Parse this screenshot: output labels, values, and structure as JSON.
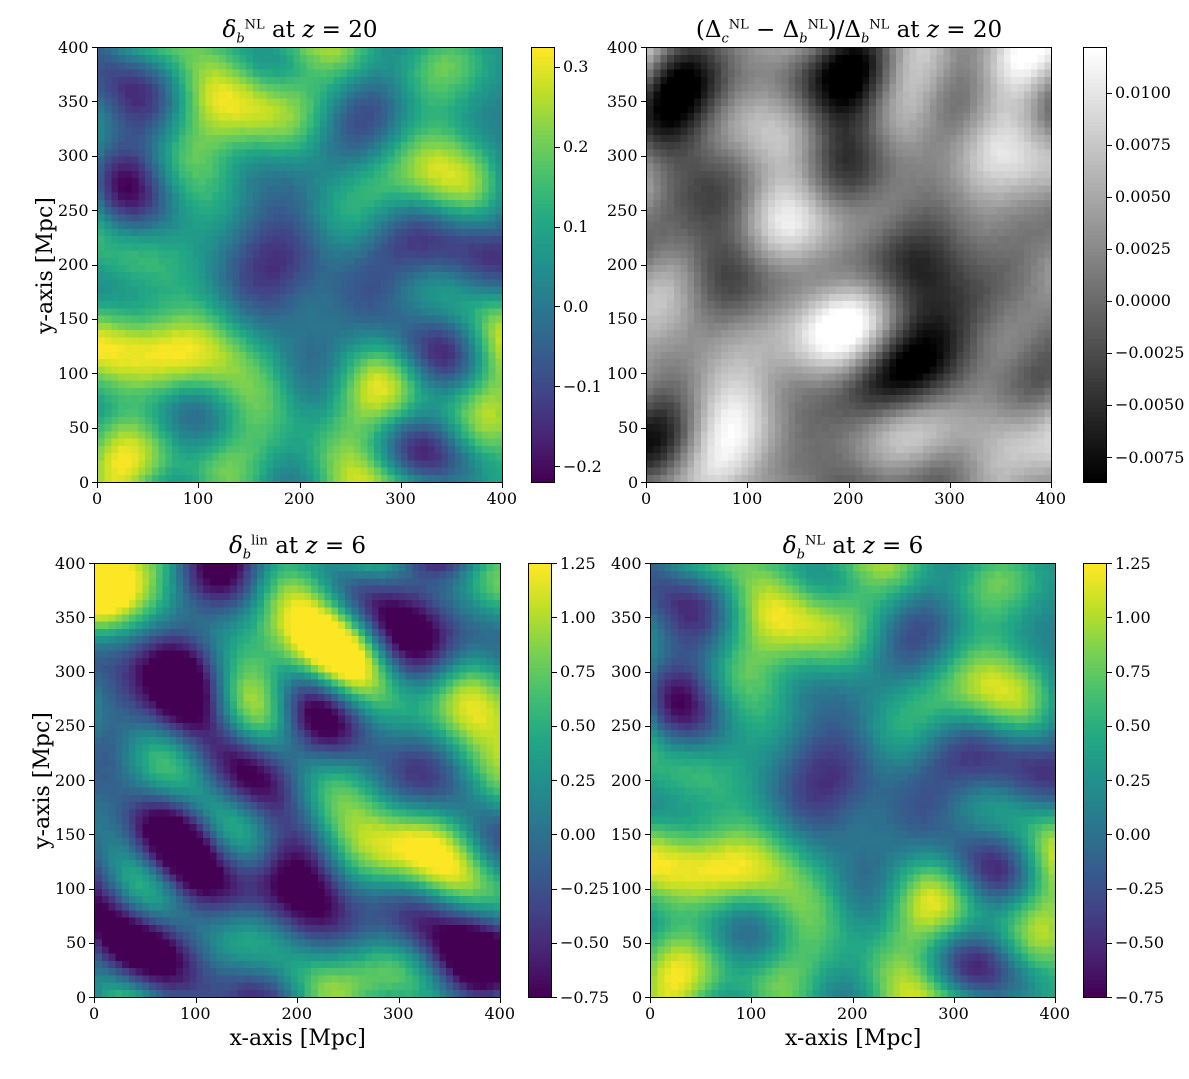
{
  "figure": {
    "xlabel": "x-axis [Mpc]",
    "ylabel": "y-axis [Mpc]"
  },
  "chart_data": [
    {
      "type": "heatmap",
      "id": "tl",
      "title_parts": [
        {
          "t": "δ",
          "it": true
        },
        {
          "t": "b",
          "sub": true,
          "it": true
        },
        {
          "t": "NL",
          "sup": true
        },
        {
          "t": " at "
        },
        {
          "t": "z",
          "it": true
        },
        {
          "t": " = 20"
        }
      ],
      "title_text": "δb^NL at z = 20",
      "colormap": "viridis",
      "xlim": [
        0,
        400
      ],
      "ylim": [
        0,
        400
      ],
      "xticks": [
        "0",
        "100",
        "200",
        "300",
        "400"
      ],
      "yticks": [
        "0",
        "50",
        "100",
        "150",
        "200",
        "250",
        "300",
        "350",
        "400"
      ],
      "clim": [
        -0.22,
        0.325
      ],
      "cbar_ticks": [
        {
          "v": -0.2,
          "label": "−0.2"
        },
        {
          "v": -0.1,
          "label": "−0.1"
        },
        {
          "v": 0.0,
          "label": "0.0"
        },
        {
          "v": 0.1,
          "label": "0.1"
        },
        {
          "v": 0.2,
          "label": "0.2"
        },
        {
          "v": 0.3,
          "label": "0.3"
        }
      ],
      "show_xlabel": false,
      "show_ylabel": true
    },
    {
      "type": "heatmap",
      "id": "tr",
      "title_parts": [
        {
          "t": "(Δ"
        },
        {
          "t": "c",
          "sub": true,
          "it": true
        },
        {
          "t": "NL",
          "sup": true
        },
        {
          "t": " − Δ"
        },
        {
          "t": "b",
          "sub": true,
          "it": true
        },
        {
          "t": "NL",
          "sup": true
        },
        {
          "t": ")/Δ"
        },
        {
          "t": "b",
          "sub": true,
          "it": true
        },
        {
          "t": "NL",
          "sup": true
        },
        {
          "t": " at "
        },
        {
          "t": "z",
          "it": true
        },
        {
          "t": " = 20"
        }
      ],
      "title_text": "(Δc^NL − Δb^NL)/Δb^NL at z = 20",
      "colormap": "gray",
      "xlim": [
        0,
        400
      ],
      "ylim": [
        0,
        400
      ],
      "xticks": [
        "0",
        "100",
        "200",
        "300",
        "400"
      ],
      "yticks": [
        "0",
        "50",
        "100",
        "150",
        "200",
        "250",
        "300",
        "350",
        "400"
      ],
      "clim": [
        -0.0087,
        0.0122
      ],
      "cbar_ticks": [
        {
          "v": -0.0075,
          "label": "−0.0075"
        },
        {
          "v": -0.005,
          "label": "−0.0050"
        },
        {
          "v": -0.0025,
          "label": "−0.0025"
        },
        {
          "v": 0.0,
          "label": "0.0000"
        },
        {
          "v": 0.0025,
          "label": "0.0025"
        },
        {
          "v": 0.005,
          "label": "0.0050"
        },
        {
          "v": 0.0075,
          "label": "0.0075"
        },
        {
          "v": 0.01,
          "label": "0.0100"
        }
      ],
      "show_xlabel": false,
      "show_ylabel": false
    },
    {
      "type": "heatmap",
      "id": "bl",
      "title_parts": [
        {
          "t": "δ",
          "it": true
        },
        {
          "t": "b",
          "sub": true,
          "it": true
        },
        {
          "t": "lin",
          "sup": true
        },
        {
          "t": " at "
        },
        {
          "t": "z",
          "it": true
        },
        {
          "t": " = 6"
        }
      ],
      "title_text": "δb^lin at z = 6",
      "colormap": "viridis",
      "xlim": [
        0,
        400
      ],
      "ylim": [
        0,
        400
      ],
      "xticks": [
        "0",
        "100",
        "200",
        "300",
        "400"
      ],
      "yticks": [
        "0",
        "50",
        "100",
        "150",
        "200",
        "250",
        "300",
        "350",
        "400"
      ],
      "clim": [
        -0.75,
        1.25
      ],
      "cbar_ticks": [
        {
          "v": -0.75,
          "label": "−0.75"
        },
        {
          "v": -0.5,
          "label": "−0.50"
        },
        {
          "v": -0.25,
          "label": "−0.25"
        },
        {
          "v": 0.0,
          "label": "0.00"
        },
        {
          "v": 0.25,
          "label": "0.25"
        },
        {
          "v": 0.5,
          "label": "0.50"
        },
        {
          "v": 0.75,
          "label": "0.75"
        },
        {
          "v": 1.0,
          "label": "1.00"
        },
        {
          "v": 1.25,
          "label": "1.25"
        }
      ],
      "show_xlabel": true,
      "show_ylabel": true
    },
    {
      "type": "heatmap",
      "id": "br",
      "title_parts": [
        {
          "t": "δ",
          "it": true
        },
        {
          "t": "b",
          "sub": true,
          "it": true
        },
        {
          "t": "NL",
          "sup": true
        },
        {
          "t": " at "
        },
        {
          "t": "z",
          "it": true
        },
        {
          "t": " = 6"
        }
      ],
      "title_text": "δb^NL at z = 6",
      "colormap": "viridis",
      "xlim": [
        0,
        400
      ],
      "ylim": [
        0,
        400
      ],
      "xticks": [
        "0",
        "100",
        "200",
        "300",
        "400"
      ],
      "yticks": [
        "0",
        "50",
        "100",
        "150",
        "200",
        "250",
        "300",
        "350",
        "400"
      ],
      "clim": [
        -0.75,
        1.25
      ],
      "cbar_ticks": [
        {
          "v": -0.75,
          "label": "−0.75"
        },
        {
          "v": -0.5,
          "label": "−0.50"
        },
        {
          "v": -0.25,
          "label": "−0.25"
        },
        {
          "v": 0.0,
          "label": "0.00"
        },
        {
          "v": 0.25,
          "label": "0.25"
        },
        {
          "v": 0.5,
          "label": "0.50"
        },
        {
          "v": 0.75,
          "label": "0.75"
        },
        {
          "v": 1.0,
          "label": "1.00"
        },
        {
          "v": 1.25,
          "label": "1.25"
        }
      ],
      "show_xlabel": true,
      "show_ylabel": false
    }
  ]
}
